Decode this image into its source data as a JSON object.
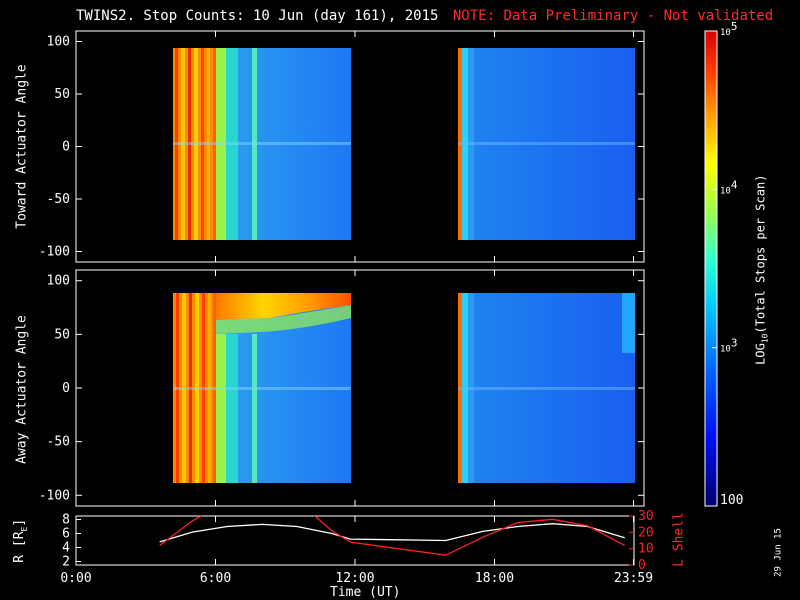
{
  "title": {
    "main": "TWINS2. Stop Counts: 10 Jun (day 161), 2015",
    "note": "NOTE: Data Preliminary - Not validated"
  },
  "date_stamp": "29 Jun 15",
  "colors": {
    "background": "#000000",
    "axes": "#ffffff",
    "note": "#ff2a2a",
    "r_line": "#ffffff",
    "lshell_line": "#ff2020"
  },
  "chart_data": [
    {
      "type": "heatmap",
      "panel": "toward",
      "ylabel": "Toward Actuator Angle",
      "ylim": [
        -110,
        110
      ],
      "yticks": [
        -100,
        -50,
        0,
        50,
        100
      ],
      "y_tick_labels": [
        "-100",
        "-50",
        "0",
        "50",
        "100"
      ],
      "data_ylim": [
        -90,
        90
      ],
      "x_hours": [
        0,
        24
      ],
      "data_segments_hours": [
        [
          3.6,
          11.2
        ],
        [
          15.9,
          23.6
        ]
      ]
    },
    {
      "type": "heatmap",
      "panel": "away",
      "ylabel": "Away Actuator Angle",
      "ylim": [
        -110,
        110
      ],
      "yticks": [
        -100,
        -50,
        0,
        50,
        100
      ],
      "y_tick_labels": [
        "-100",
        "-50",
        "0",
        "50",
        "100"
      ],
      "data_ylim": [
        -90,
        90
      ],
      "x_hours": [
        0,
        24
      ],
      "data_segments_hours": [
        [
          3.6,
          11.2
        ],
        [
          15.9,
          23.6
        ]
      ]
    },
    {
      "type": "line",
      "panel": "orbit",
      "xlabel": "Time (UT)",
      "xticks_hours": [
        0,
        6,
        12,
        18,
        23.98
      ],
      "x_tick_labels": [
        "0:00",
        "6:00",
        "12:00",
        "18:00",
        "23:59"
      ],
      "ylabel_left": "R [RE]",
      "ylabel_left_main": "R [R",
      "ylabel_left_sub": "E",
      "ylabel_left_end": "]",
      "ylim_left": [
        1.5,
        8.5
      ],
      "yticks_left": [
        2,
        4,
        6,
        8
      ],
      "y_tick_labels_left": [
        "2",
        "4",
        "6",
        "8"
      ],
      "ylabel_right": "L Shell",
      "ylim_right": [
        0,
        30
      ],
      "yticks_right": [
        0,
        10,
        20,
        30
      ],
      "y_tick_labels_right": [
        "0",
        "10",
        "20",
        "30"
      ],
      "series": [
        {
          "axis": "left",
          "color": "#ffffff",
          "x": [
            3.6,
            5.0,
            6.5,
            8.0,
            9.5,
            11.0,
            11.8,
            15.9,
            17.5,
            19.0,
            20.5,
            22.0,
            23.6
          ],
          "y": [
            4.8,
            6.2,
            7.0,
            7.3,
            7.0,
            6.0,
            5.2,
            5.0,
            6.3,
            7.0,
            7.4,
            7.0,
            5.4
          ]
        },
        {
          "axis": "right",
          "color": "#ff2020",
          "x": [
            3.6,
            5.0,
            5.5,
            10.2,
            11.0,
            11.8,
            15.9,
            17.5,
            19.0,
            20.5,
            22.0,
            23.6
          ],
          "y": [
            12,
            27,
            31,
            31,
            21,
            14,
            6,
            17,
            26,
            28,
            24,
            12
          ]
        }
      ]
    }
  ],
  "colorbar": {
    "label_main": "LOG",
    "label_sub": "10",
    "label_end": "(Total Stops per Scan)",
    "scale": "log",
    "range": [
      100,
      100000
    ],
    "ticks": [
      {
        "label": "100",
        "base": "",
        "exp": ""
      },
      {
        "label": "",
        "base": "10",
        "exp": "3"
      },
      {
        "label": "",
        "base": "10",
        "exp": "4"
      },
      {
        "label": "",
        "base": "10",
        "exp": "5"
      }
    ]
  }
}
